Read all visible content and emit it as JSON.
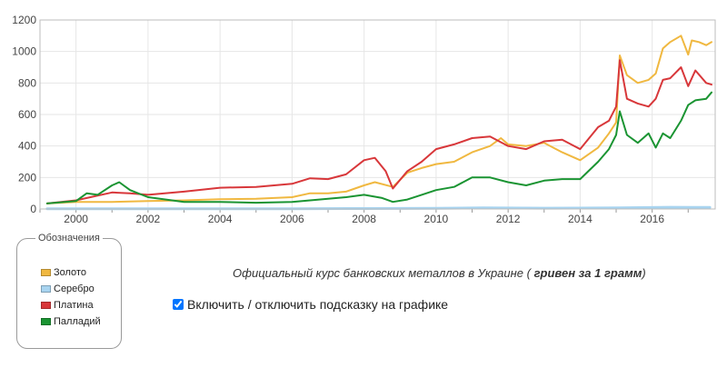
{
  "chart_data": {
    "type": "line",
    "ylim": [
      0,
      1200
    ],
    "yticks": [
      0,
      200,
      400,
      600,
      800,
      1000,
      1200
    ],
    "xlim": [
      1999.0,
      2017.75
    ],
    "xticks": [
      2000,
      2002,
      2004,
      2006,
      2008,
      2010,
      2012,
      2014,
      2016
    ],
    "grid": true,
    "series": [
      {
        "name": "Серебро",
        "color": "#a8d4f0",
        "x": [
          1999.2,
          2002.0,
          2006.0,
          2008.0,
          2010.0,
          2011.3,
          2013.0,
          2015.1,
          2016.5,
          2017.6
        ],
        "values": [
          1,
          1,
          2,
          3,
          4,
          7,
          5,
          7,
          11,
          10
        ]
      },
      {
        "name": "Золото",
        "color": "#f0b840",
        "x": [
          1999.2,
          2000.0,
          2001.0,
          2002.0,
          2003.0,
          2004.0,
          2005.0,
          2006.0,
          2006.5,
          2007.0,
          2007.5,
          2008.0,
          2008.3,
          2008.8,
          2009.2,
          2009.6,
          2010.0,
          2010.5,
          2011.0,
          2011.5,
          2011.8,
          2012.0,
          2012.5,
          2013.0,
          2013.5,
          2014.0,
          2014.5,
          2014.8,
          2015.0,
          2015.1,
          2015.3,
          2015.6,
          2015.9,
          2016.1,
          2016.3,
          2016.5,
          2016.8,
          2017.0,
          2017.1,
          2017.3,
          2017.5,
          2017.65
        ],
        "values": [
          35,
          45,
          45,
          50,
          55,
          62,
          65,
          75,
          100,
          100,
          110,
          150,
          170,
          140,
          230,
          260,
          285,
          300,
          360,
          400,
          450,
          410,
          400,
          420,
          360,
          310,
          390,
          480,
          550,
          975,
          850,
          800,
          820,
          860,
          1020,
          1060,
          1100,
          980,
          1070,
          1060,
          1040,
          1060
        ]
      },
      {
        "name": "Платина",
        "color": "#d8373a",
        "x": [
          1999.2,
          2000.0,
          2001.0,
          2001.5,
          2002.0,
          2003.0,
          2004.0,
          2005.0,
          2006.0,
          2006.5,
          2007.0,
          2007.5,
          2008.0,
          2008.3,
          2008.6,
          2008.8,
          2009.2,
          2009.6,
          2010.0,
          2010.5,
          2011.0,
          2011.5,
          2012.0,
          2012.5,
          2013.0,
          2013.5,
          2014.0,
          2014.5,
          2014.8,
          2015.0,
          2015.1,
          2015.3,
          2015.6,
          2015.9,
          2016.1,
          2016.3,
          2016.5,
          2016.8,
          2017.0,
          2017.2,
          2017.5,
          2017.65
        ],
        "values": [
          35,
          55,
          105,
          100,
          90,
          110,
          135,
          140,
          160,
          195,
          190,
          220,
          310,
          325,
          240,
          130,
          240,
          300,
          380,
          410,
          450,
          460,
          400,
          380,
          430,
          440,
          380,
          520,
          560,
          650,
          945,
          700,
          670,
          650,
          700,
          820,
          830,
          900,
          780,
          880,
          800,
          790
        ]
      },
      {
        "name": "Палладий",
        "color": "#1a9432",
        "x": [
          1999.2,
          2000.0,
          2000.3,
          2000.6,
          2001.0,
          2001.2,
          2001.5,
          2002.0,
          2003.0,
          2004.0,
          2005.0,
          2006.0,
          2006.5,
          2007.0,
          2007.5,
          2008.0,
          2008.5,
          2008.8,
          2009.2,
          2009.6,
          2010.0,
          2010.5,
          2011.0,
          2011.5,
          2012.0,
          2012.5,
          2013.0,
          2013.5,
          2014.0,
          2014.5,
          2014.8,
          2015.0,
          2015.1,
          2015.3,
          2015.6,
          2015.9,
          2016.1,
          2016.3,
          2016.5,
          2016.8,
          2017.0,
          2017.2,
          2017.5,
          2017.65
        ],
        "values": [
          35,
          50,
          100,
          90,
          150,
          170,
          120,
          75,
          45,
          45,
          40,
          45,
          55,
          65,
          75,
          90,
          70,
          45,
          60,
          90,
          120,
          140,
          200,
          200,
          170,
          150,
          180,
          190,
          190,
          300,
          380,
          470,
          620,
          470,
          420,
          480,
          390,
          480,
          450,
          560,
          660,
          690,
          700,
          740
        ]
      }
    ],
    "legend": {
      "title": "Обозначения",
      "placement": "bottom-left",
      "items": [
        {
          "label": "Золото",
          "color": "#f0b840"
        },
        {
          "label": "Серебро",
          "color": "#a8d4f0"
        },
        {
          "label": "Платина",
          "color": "#d8373a"
        },
        {
          "label": "Палладий",
          "color": "#1a9432"
        }
      ]
    }
  },
  "caption": {
    "main": "Официальный курс банковских металлов в Украине (",
    "bold": "гривен за 1 грамм",
    "end": ")"
  },
  "toggle": {
    "label": "Включить / отключить подсказку на графике",
    "checked": true
  }
}
